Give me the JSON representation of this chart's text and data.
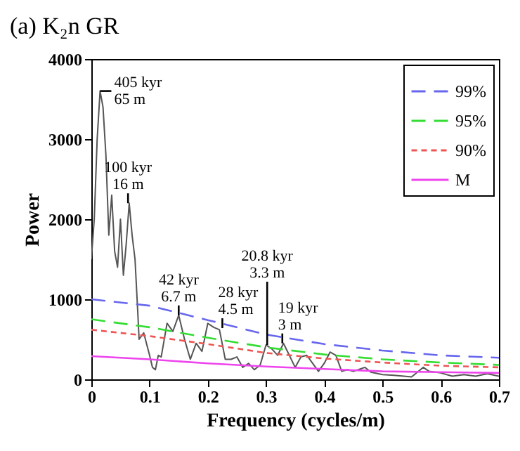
{
  "chart_data": {
    "type": "line",
    "title": "(a) K₂n GR",
    "xlabel": "Frequency (cycles/m)",
    "ylabel": "Power",
    "xlim": [
      0,
      0.7
    ],
    "xticks": [
      {
        "value": 0,
        "label": "0"
      },
      0.1,
      0.2,
      0.3,
      0.4,
      0.5,
      0.6,
      0.7
    ],
    "ylim": [
      0,
      4000
    ],
    "yticks": [
      0,
      {
        "value": 1000,
        "label": "1000"
      },
      {
        "value": 2000,
        "label": "2000"
      },
      {
        "value": 3000,
        "label": "3000"
      },
      {
        "value": 4000,
        "label": "4000"
      }
    ],
    "legend": "top right",
    "grid": false,
    "series": [
      {
        "color": "#555555",
        "line_style": "solid",
        "x": [
          0,
          0.005,
          0.01,
          0.015,
          0.02,
          0.025,
          0.03,
          0.035,
          0.04,
          0.045,
          0.05,
          0.055,
          0.06,
          0.065,
          0.07,
          0.075,
          0.08,
          0.082,
          0.09,
          0.1,
          0.105,
          0.11,
          0.115,
          0.12,
          0.13,
          0.14,
          0.15,
          0.16,
          0.17,
          0.18,
          0.19,
          0.2,
          0.21,
          0.22,
          0.23,
          0.24,
          0.25,
          0.26,
          0.27,
          0.28,
          0.29,
          0.3,
          0.31,
          0.32,
          0.33,
          0.34,
          0.35,
          0.36,
          0.37,
          0.38,
          0.39,
          0.4,
          0.41,
          0.42,
          0.43,
          0.44,
          0.45,
          0.47,
          0.48,
          0.5,
          0.52,
          0.55,
          0.57,
          0.58,
          0.6,
          0.62,
          0.64,
          0.66,
          0.68,
          0.7
        ],
        "values": [
          1500,
          2000,
          3000,
          3600,
          3400,
          2800,
          1800,
          2300,
          1600,
          1400,
          2000,
          1300,
          1700,
          2200,
          1800,
          1500,
          800,
          500,
          580,
          300,
          150,
          120,
          300,
          280,
          700,
          600,
          800,
          500,
          250,
          450,
          350,
          700,
          650,
          620,
          250,
          250,
          280,
          150,
          200,
          120,
          180,
          430,
          380,
          300,
          450,
          300,
          150,
          280,
          300,
          200,
          100,
          200,
          340,
          300,
          100,
          120,
          100,
          150,
          90,
          60,
          50,
          30,
          150,
          100,
          80,
          40,
          60,
          40,
          70,
          40
        ]
      },
      {
        "name": "99%",
        "color": "#6666ee",
        "line_style": "dashed",
        "x": [
          0,
          0.1,
          0.2,
          0.3,
          0.4,
          0.5,
          0.6,
          0.7
        ],
        "values": [
          1000,
          920,
          740,
          560,
          440,
          360,
          300,
          270
        ]
      },
      {
        "name": "95%",
        "color": "#33dd33",
        "line_style": "dashed",
        "x": [
          0,
          0.1,
          0.2,
          0.3,
          0.4,
          0.5,
          0.6,
          0.7
        ],
        "values": [
          750,
          650,
          520,
          400,
          310,
          250,
          210,
          180
        ]
      },
      {
        "name": "90%",
        "color": "#ee5555",
        "line_style": "dotted",
        "x": [
          0,
          0.1,
          0.2,
          0.3,
          0.4,
          0.5,
          0.6,
          0.7
        ],
        "values": [
          620,
          540,
          440,
          330,
          260,
          210,
          170,
          150
        ]
      },
      {
        "name": "M",
        "color": "#ee44ee",
        "line_style": "solid",
        "x": [
          0,
          0.1,
          0.2,
          0.3,
          0.4,
          0.5,
          0.6,
          0.7
        ],
        "values": [
          290,
          250,
          200,
          160,
          130,
          100,
          90,
          80
        ]
      }
    ],
    "annotations": [
      {
        "text": "405 kyr\n65 m",
        "x": 0.015,
        "y": 3600
      },
      {
        "text": "100 kyr\n16 m",
        "x": 0.063,
        "y": 2200
      },
      {
        "text": "42 kyr\n6.7 m",
        "x": 0.15,
        "y": 800
      },
      {
        "text": "28 kyr\n4.5 m",
        "x": 0.225,
        "y": 640
      },
      {
        "text": "20.8 kyr\n3.3 m",
        "x": 0.302,
        "y": 430
      },
      {
        "text": "19 kyr\n3 m",
        "x": 0.328,
        "y": 450
      }
    ]
  }
}
